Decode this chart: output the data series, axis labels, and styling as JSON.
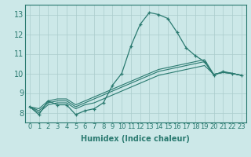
{
  "xlabel": "Humidex (Indice chaleur)",
  "background_color": "#cce8e8",
  "grid_color": "#aacccc",
  "line_color": "#2a7a70",
  "xlim": [
    -0.5,
    23.5
  ],
  "ylim": [
    7.5,
    13.5
  ],
  "xticks": [
    0,
    1,
    2,
    3,
    4,
    5,
    6,
    7,
    8,
    9,
    10,
    11,
    12,
    13,
    14,
    15,
    16,
    17,
    18,
    19,
    20,
    21,
    22,
    23
  ],
  "yticks": [
    8,
    9,
    10,
    11,
    12,
    13
  ],
  "series_main": [
    8.3,
    7.9,
    8.6,
    8.4,
    8.4,
    7.9,
    8.1,
    8.2,
    8.5,
    9.4,
    10.0,
    11.4,
    12.5,
    13.1,
    13.0,
    12.8,
    12.1,
    11.3,
    10.9,
    10.6,
    9.9,
    10.1,
    10.0,
    9.9
  ],
  "series_trend1": [
    8.3,
    8.0,
    8.4,
    8.5,
    8.5,
    8.2,
    8.4,
    8.5,
    8.7,
    8.9,
    9.1,
    9.3,
    9.5,
    9.7,
    9.9,
    10.0,
    10.1,
    10.2,
    10.3,
    10.4,
    9.95,
    10.05,
    10.0,
    9.9
  ],
  "series_trend2": [
    8.3,
    8.1,
    8.5,
    8.6,
    8.6,
    8.3,
    8.5,
    8.7,
    8.9,
    9.1,
    9.3,
    9.5,
    9.7,
    9.9,
    10.1,
    10.2,
    10.3,
    10.4,
    10.5,
    10.6,
    9.95,
    10.05,
    10.0,
    9.9
  ],
  "series_trend3": [
    8.3,
    8.2,
    8.6,
    8.7,
    8.7,
    8.4,
    8.6,
    8.8,
    9.0,
    9.2,
    9.4,
    9.6,
    9.8,
    10.0,
    10.2,
    10.3,
    10.4,
    10.5,
    10.6,
    10.7,
    9.95,
    10.05,
    10.0,
    9.9
  ],
  "tick_fontsize": 6,
  "xlabel_fontsize": 7
}
